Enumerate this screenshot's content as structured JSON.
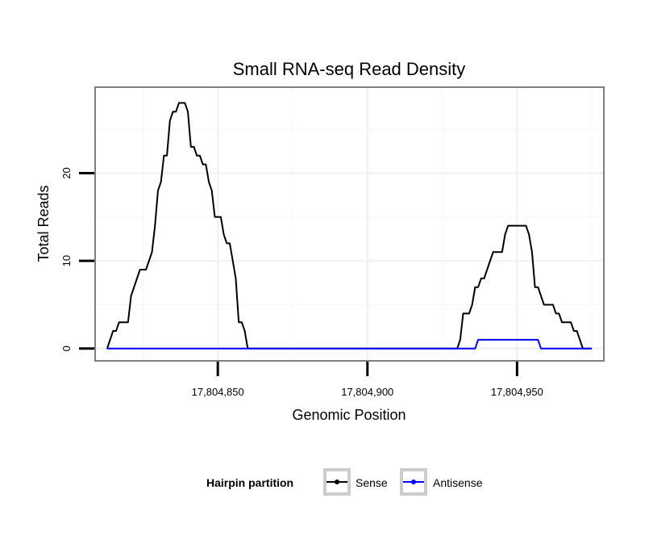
{
  "chart_data": {
    "type": "line",
    "title": "Small RNA-seq Read Density",
    "xlabel": "Genomic Position",
    "ylabel": "Total Reads",
    "xlim": [
      17804809,
      17804979
    ],
    "ylim": [
      -1.4,
      29.8
    ],
    "x_ticks": [
      17804850,
      17804900,
      17804950
    ],
    "x_tick_labels": [
      "17,804,850",
      "17,804,900",
      "17,804,950"
    ],
    "y_ticks": [
      0,
      10,
      20
    ],
    "y_tick_labels": [
      "0",
      "10",
      "20"
    ],
    "grid": true,
    "legend": {
      "title": "Hairpin partition",
      "position": "bottom",
      "entries": [
        {
          "label": "Sense",
          "color": "#000000"
        },
        {
          "label": "Antisense",
          "color": "#0000ff"
        }
      ]
    },
    "series": [
      {
        "name": "Sense",
        "color": "#000000",
        "points": [
          [
            17804813,
            0
          ],
          [
            17804814,
            1
          ],
          [
            17804815,
            2
          ],
          [
            17804816,
            2
          ],
          [
            17804817,
            3
          ],
          [
            17804818,
            3
          ],
          [
            17804819,
            3
          ],
          [
            17804820,
            3
          ],
          [
            17804821,
            6
          ],
          [
            17804822,
            7
          ],
          [
            17804823,
            8
          ],
          [
            17804824,
            9
          ],
          [
            17804825,
            9
          ],
          [
            17804826,
            9
          ],
          [
            17804827,
            10
          ],
          [
            17804828,
            11
          ],
          [
            17804829,
            14
          ],
          [
            17804830,
            18
          ],
          [
            17804831,
            19
          ],
          [
            17804832,
            22
          ],
          [
            17804833,
            22
          ],
          [
            17804834,
            26
          ],
          [
            17804835,
            27
          ],
          [
            17804836,
            27
          ],
          [
            17804837,
            28
          ],
          [
            17804838,
            28
          ],
          [
            17804839,
            28
          ],
          [
            17804840,
            27
          ],
          [
            17804841,
            23
          ],
          [
            17804842,
            23
          ],
          [
            17804843,
            22
          ],
          [
            17804844,
            22
          ],
          [
            17804845,
            21
          ],
          [
            17804846,
            21
          ],
          [
            17804847,
            19
          ],
          [
            17804848,
            18
          ],
          [
            17804849,
            15
          ],
          [
            17804850,
            15
          ],
          [
            17804851,
            15
          ],
          [
            17804852,
            13
          ],
          [
            17804853,
            12
          ],
          [
            17804854,
            12
          ],
          [
            17804855,
            10
          ],
          [
            17804856,
            8
          ],
          [
            17804857,
            3
          ],
          [
            17804858,
            3
          ],
          [
            17804859,
            2
          ],
          [
            17804860,
            0
          ],
          [
            17804930,
            0
          ],
          [
            17804931,
            1
          ],
          [
            17804932,
            4
          ],
          [
            17804933,
            4
          ],
          [
            17804934,
            4
          ],
          [
            17804935,
            5
          ],
          [
            17804936,
            7
          ],
          [
            17804937,
            7
          ],
          [
            17804938,
            8
          ],
          [
            17804939,
            8
          ],
          [
            17804940,
            9
          ],
          [
            17804941,
            10
          ],
          [
            17804942,
            11
          ],
          [
            17804943,
            11
          ],
          [
            17804944,
            11
          ],
          [
            17804945,
            11
          ],
          [
            17804946,
            13
          ],
          [
            17804947,
            14
          ],
          [
            17804948,
            14
          ],
          [
            17804949,
            14
          ],
          [
            17804950,
            14
          ],
          [
            17804951,
            14
          ],
          [
            17804952,
            14
          ],
          [
            17804953,
            14
          ],
          [
            17804954,
            13
          ],
          [
            17804955,
            11
          ],
          [
            17804956,
            7
          ],
          [
            17804957,
            7
          ],
          [
            17804958,
            6
          ],
          [
            17804959,
            5
          ],
          [
            17804960,
            5
          ],
          [
            17804961,
            5
          ],
          [
            17804962,
            5
          ],
          [
            17804963,
            4
          ],
          [
            17804964,
            4
          ],
          [
            17804965,
            3
          ],
          [
            17804966,
            3
          ],
          [
            17804967,
            3
          ],
          [
            17804968,
            3
          ],
          [
            17804969,
            2
          ],
          [
            17804970,
            2
          ],
          [
            17804971,
            1
          ],
          [
            17804972,
            0
          ],
          [
            17804975,
            0
          ]
        ]
      },
      {
        "name": "Antisense",
        "color": "#0000ff",
        "points": [
          [
            17804813,
            0
          ],
          [
            17804936,
            0
          ],
          [
            17804937,
            1
          ],
          [
            17804957,
            1
          ],
          [
            17804958,
            0
          ],
          [
            17804975,
            0
          ]
        ]
      }
    ]
  }
}
